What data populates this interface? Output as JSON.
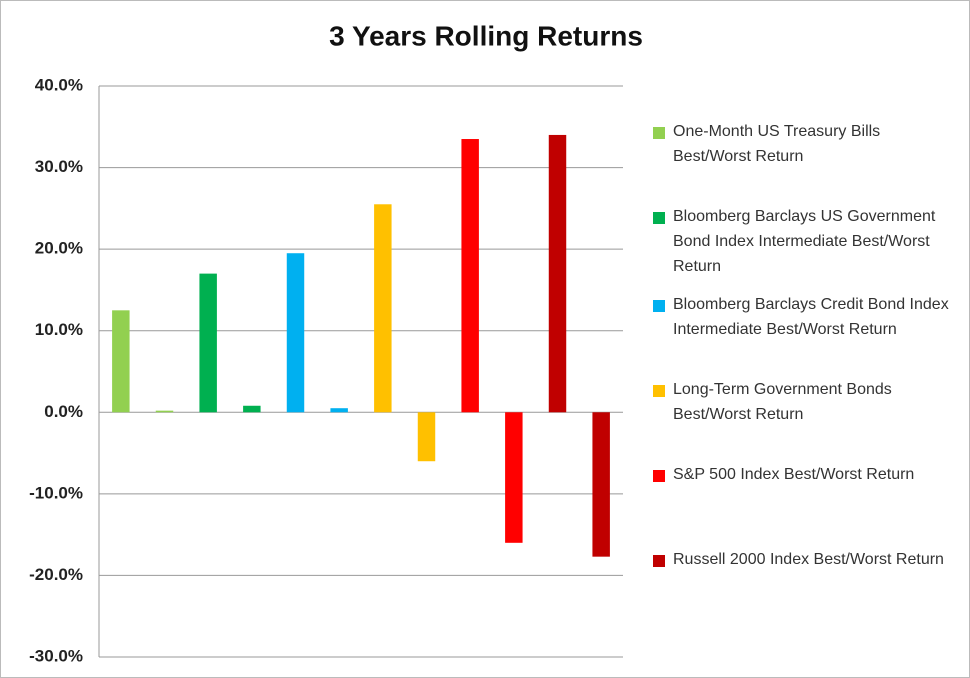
{
  "chart_data": {
    "type": "bar",
    "title": "3 Years Rolling Returns",
    "series": [
      {
        "name": "One-Month US Treasury Bills Best/Worst Return",
        "color": "#92d050",
        "values": [
          12.5,
          0.2
        ]
      },
      {
        "name": "Bloomberg Barclays US Government Bond Index Intermediate Best/Worst Return",
        "color": "#00b050",
        "values": [
          17.0,
          0.8
        ]
      },
      {
        "name": "Bloomberg Barclays Credit Bond Index Intermediate Best/Worst Return",
        "color": "#00b0f0",
        "values": [
          19.5,
          0.5
        ]
      },
      {
        "name": "Long-Term Government Bonds Best/Worst Return",
        "color": "#ffc000",
        "values": [
          25.5,
          -6.0
        ]
      },
      {
        "name": "S&P 500 Index Best/Worst Return",
        "color": "#ff0000",
        "values": [
          33.5,
          -16.0
        ]
      },
      {
        "name": "Russell 2000 Index Best/Worst Return",
        "color": "#c00000",
        "values": [
          34.0,
          -17.7
        ]
      }
    ],
    "ylim": [
      -30,
      40
    ],
    "yticks": [
      {
        "value": -30,
        "label": "-30.0%"
      },
      {
        "value": -20,
        "label": "-20.0%"
      },
      {
        "value": -10,
        "label": "-10.0%"
      },
      {
        "value": 0,
        "label": "0.0%"
      },
      {
        "value": 10,
        "label": "10.0%"
      },
      {
        "value": 20,
        "label": "20.0%"
      },
      {
        "value": 30,
        "label": "30.0%"
      },
      {
        "value": 40,
        "label": "40.0%"
      }
    ],
    "grid": true
  }
}
